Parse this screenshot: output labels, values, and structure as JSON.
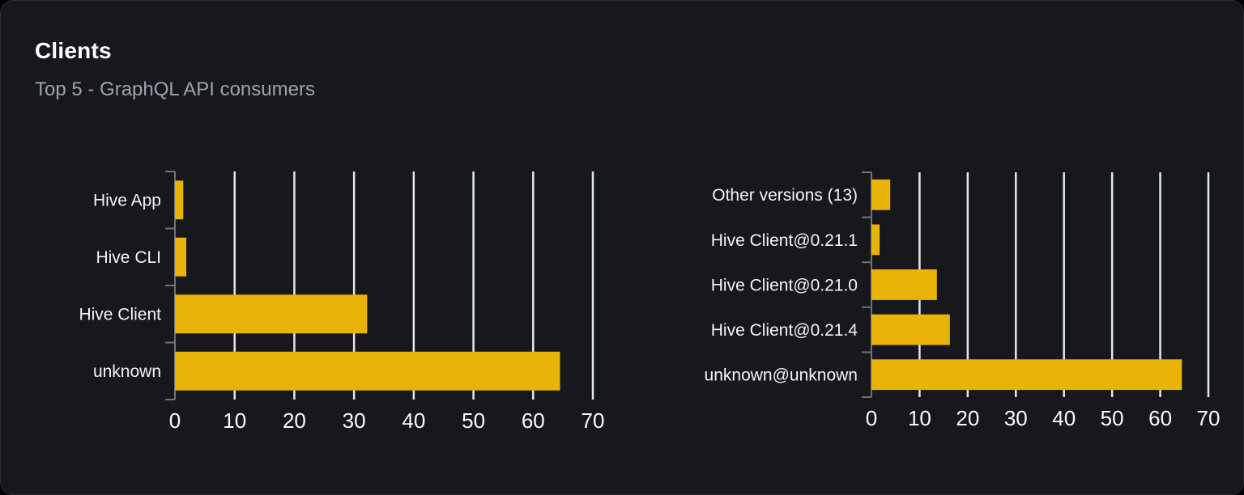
{
  "panel": {
    "title": "Clients",
    "subtitle": "Top 5 - GraphQL API consumers"
  },
  "colors": {
    "page_background": "#000000",
    "card_background": "#17181c",
    "card_border": "#2b2d33",
    "bar": "#eab308",
    "gridline": "#e2e6ed",
    "axis": "#71717a",
    "category_label": "#f4f4f5",
    "tick_label": "#fafafa",
    "title": "#ffffff",
    "subtitle": "#9ca3af"
  },
  "chart_data": [
    {
      "type": "bar",
      "orientation": "horizontal",
      "categories": [
        "Hive App",
        "Hive CLI",
        "Hive Client",
        "unknown"
      ],
      "values": [
        1.4,
        1.9,
        32.2,
        64.5
      ],
      "xlim": [
        0,
        70
      ],
      "xticks": [
        0,
        10,
        20,
        30,
        40,
        50,
        60,
        70
      ],
      "grid": true,
      "legend": false
    },
    {
      "type": "bar",
      "orientation": "horizontal",
      "categories": [
        "Other versions (13)",
        "Hive Client@0.21.1",
        "Hive Client@0.21.0",
        "Hive Client@0.21.4",
        "unknown@unknown"
      ],
      "values": [
        3.9,
        1.7,
        13.6,
        16.3,
        64.5
      ],
      "xlim": [
        0,
        70
      ],
      "xticks": [
        0,
        10,
        20,
        30,
        40,
        50,
        60,
        70
      ],
      "grid": true,
      "legend": false
    }
  ]
}
